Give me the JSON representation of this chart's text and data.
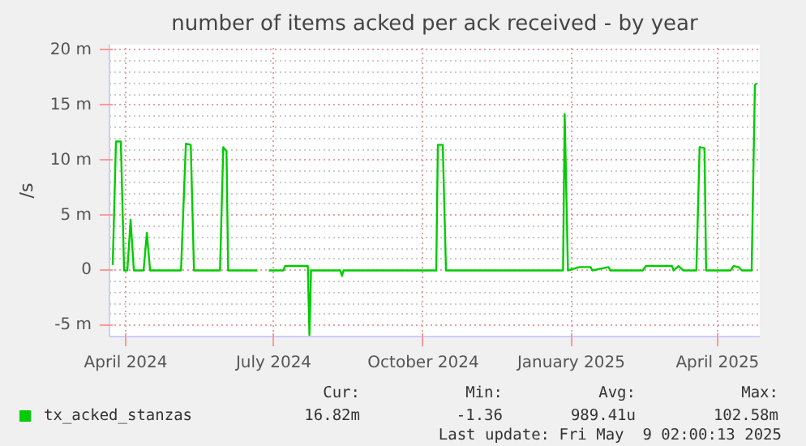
{
  "chart_data": {
    "type": "line",
    "title": "number of items acked per ack received - by year",
    "ylabel": "/s",
    "x": [
      "2024-04-07",
      "2024-04-09",
      "2024-04-12",
      "2024-04-14",
      "2024-04-16",
      "2024-04-18",
      "2024-04-20",
      "2024-04-26",
      "2024-04-28",
      "2024-04-30",
      "2024-05-19",
      "2024-05-22",
      "2024-05-25",
      "2024-05-27",
      "2024-06-12",
      "2024-06-14",
      "2024-06-16",
      "2024-06-17",
      "2024-07-05",
      "2024-07-08",
      "2024-07-12",
      "2024-07-21",
      "2024-07-22",
      "2024-08-05",
      "2024-08-06",
      "2024-08-07",
      "2024-08-25",
      "2024-08-26",
      "2024-08-27",
      "2024-10-23",
      "2024-10-24",
      "2024-10-27",
      "2024-10-29",
      "2025-01-09",
      "2025-01-10",
      "2025-01-12",
      "2025-01-19",
      "2025-01-26",
      "2025-01-27",
      "2025-02-06",
      "2025-02-07",
      "2025-02-27",
      "2025-03-01",
      "2025-03-17",
      "2025-03-18",
      "2025-03-21",
      "2025-03-24",
      "2025-04-01",
      "2025-04-03",
      "2025-04-06",
      "2025-04-07",
      "2025-04-22",
      "2025-04-24",
      "2025-04-27",
      "2025-04-29",
      "2025-05-05",
      "2025-05-07",
      "2025-05-08"
    ],
    "series": [
      {
        "name": "tx_acked_stanzas",
        "color": "#00cc00",
        "values": [
          0.5,
          11.7,
          11.7,
          0,
          0,
          4.6,
          0,
          0,
          3.4,
          0,
          0,
          11.5,
          11.4,
          0,
          0,
          11.2,
          10.8,
          0,
          0,
          null,
          0,
          0,
          0.4,
          0.4,
          -5.9,
          0,
          0,
          -0.5,
          0,
          0,
          11.4,
          11.4,
          0,
          0,
          14.2,
          0,
          0.3,
          0.3,
          0,
          0.3,
          0,
          0,
          0.4,
          0.4,
          0,
          0.4,
          0,
          0,
          11.2,
          11.1,
          0,
          0,
          0.4,
          0.3,
          0,
          0,
          16.8,
          17.0
        ]
      }
    ],
    "xlim": [
      "2024-04-05",
      "2025-05-10"
    ],
    "xticks": [
      {
        "value": "2024-04-15",
        "label": "April 2024"
      },
      {
        "value": "2024-07-15",
        "label": "July 2024"
      },
      {
        "value": "2024-10-15",
        "label": "October 2024"
      },
      {
        "value": "2025-01-14",
        "label": "January 2025"
      },
      {
        "value": "2025-04-14",
        "label": "April 2025"
      }
    ],
    "ylim": [
      -6,
      20.5
    ],
    "yticks": [
      {
        "value": -5,
        "label": "-5 m"
      },
      0,
      {
        "value": 5,
        "label": "5 m"
      },
      {
        "value": 10,
        "label": "10 m"
      },
      {
        "value": 15,
        "label": "15 m"
      },
      {
        "value": 20,
        "label": "20 m"
      }
    ],
    "grid": true,
    "legend": "bottom",
    "line_style": "solid",
    "annotations": [
      "Cur:",
      "16.82m",
      "Min:",
      "-1.36",
      "Avg:",
      "989.41u",
      "Max:",
      "102.58m",
      "Last update: Fri May  9 02:00:13 2025"
    ]
  }
}
